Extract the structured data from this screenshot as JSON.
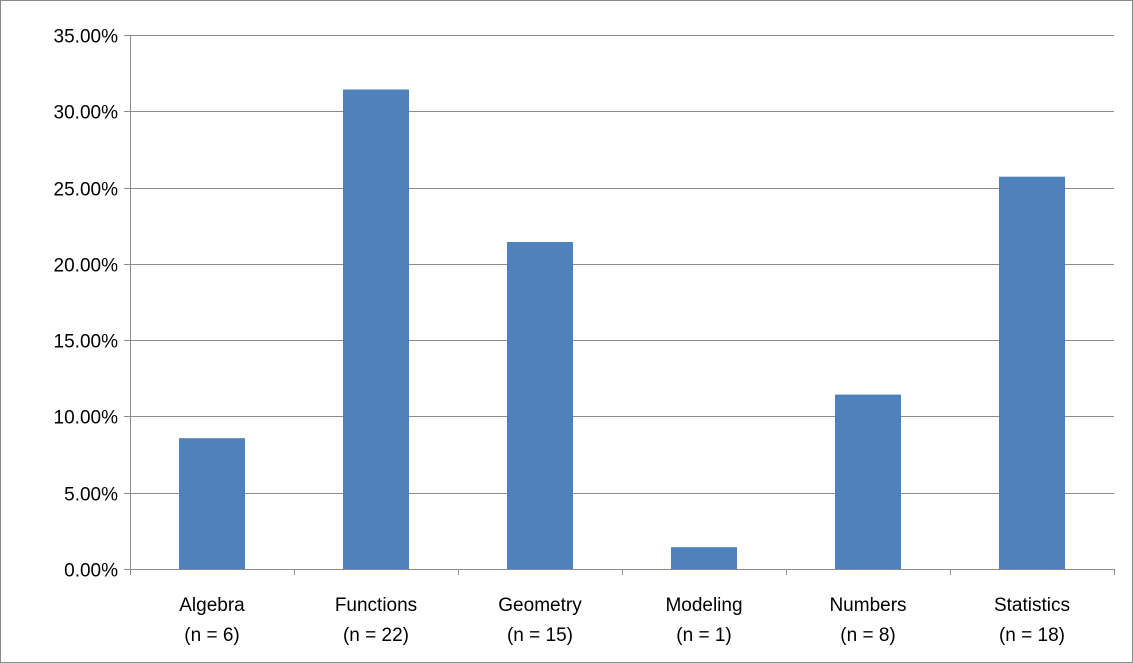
{
  "colors": {
    "bar": "#4F81BD",
    "gridline": "#8C8C8C",
    "axis": "#8C8C8C",
    "frame": "#8A8A8A"
  },
  "chart_data": {
    "type": "bar",
    "categories": [
      [
        "Algebra",
        "(n = 6)"
      ],
      [
        "Functions",
        "(n = 22)"
      ],
      [
        "Geometry",
        "(n = 15)"
      ],
      [
        "Modeling",
        "(n = 1)"
      ],
      [
        "Numbers",
        "(n = 8)"
      ],
      [
        "Statistics",
        "(n = 18)"
      ]
    ],
    "values": [
      8.57,
      31.43,
      21.43,
      1.43,
      11.43,
      25.71
    ],
    "value_unit": "percent",
    "ylim": [
      0,
      35
    ],
    "yticks": [
      0,
      5,
      10,
      15,
      20,
      25,
      30,
      35
    ],
    "ytick_labels": [
      "0.00%",
      "5.00%",
      "10.00%",
      "15.00%",
      "20.00%",
      "25.00%",
      "30.00%",
      "35.00%"
    ],
    "grid": true,
    "legend": "none",
    "title": "",
    "xlabel": "",
    "ylabel": ""
  }
}
